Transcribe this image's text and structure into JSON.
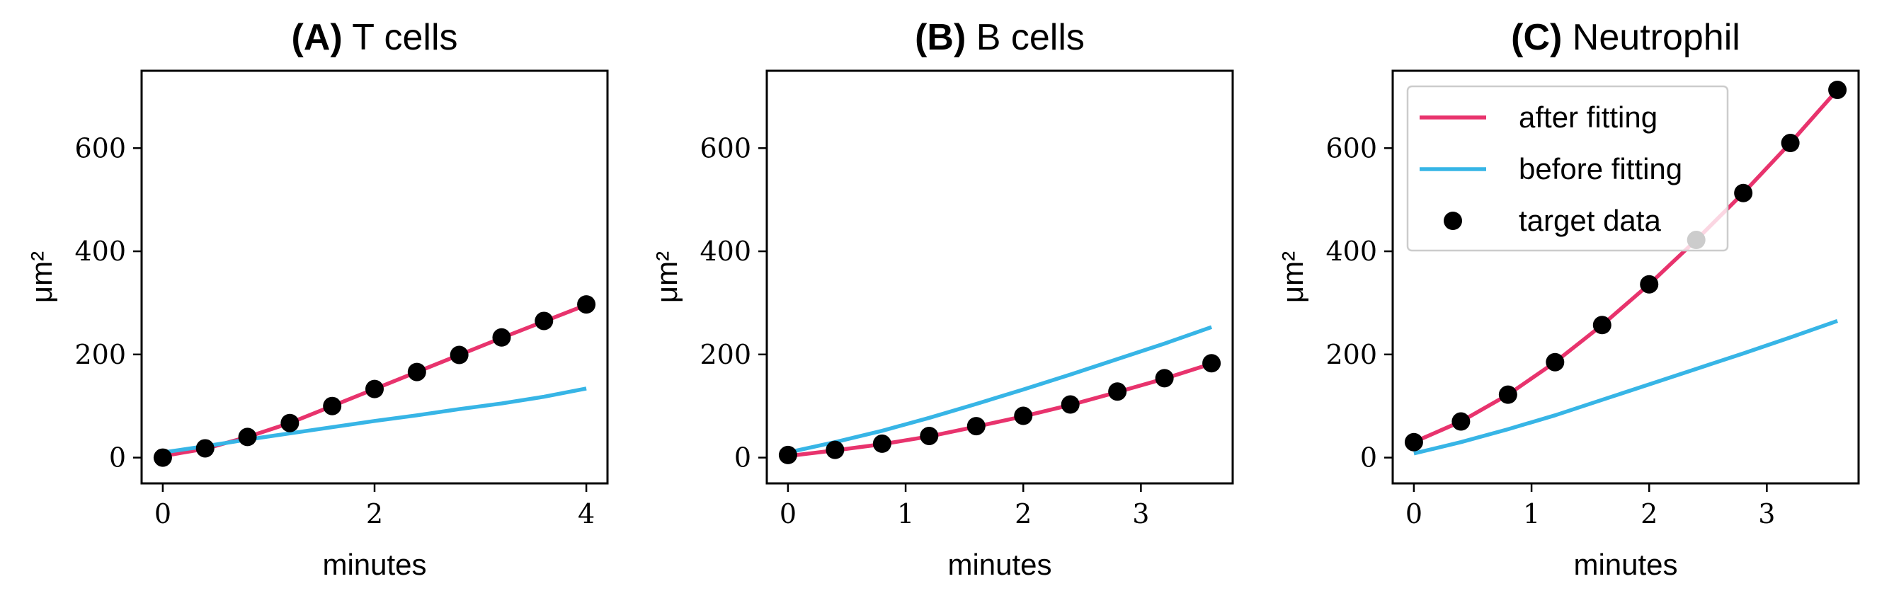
{
  "chart_data": [
    {
      "type": "line",
      "title_prefix": "(A)",
      "title_text": "T cells",
      "xlabel": "minutes",
      "ylabel": "μm²",
      "xlim": [
        -0.2,
        4.2
      ],
      "ylim": [
        -50,
        750
      ],
      "xticks": [
        0,
        2,
        4
      ],
      "xtick_labels": [
        "0",
        "2",
        "4"
      ],
      "yticks": [
        0,
        200,
        400,
        600
      ],
      "ytick_labels": [
        "0",
        "200",
        "400",
        "600"
      ],
      "series": [
        {
          "name": "after fitting",
          "kind": "line",
          "color": "#e8336d",
          "x": [
            0,
            0.4,
            0.8,
            1.2,
            1.6,
            2.0,
            2.4,
            2.8,
            3.2,
            3.6,
            4.0
          ],
          "y": [
            3,
            17,
            40,
            67,
            100,
            133,
            166,
            199,
            232,
            264,
            296
          ]
        },
        {
          "name": "before fitting",
          "kind": "line",
          "color": "#37b5e6",
          "x": [
            0,
            0.4,
            0.8,
            1.2,
            1.6,
            2.0,
            2.4,
            2.8,
            3.2,
            3.6,
            4.0
          ],
          "y": [
            10,
            22,
            35,
            47,
            59,
            71,
            82,
            94,
            105,
            118,
            134
          ]
        },
        {
          "name": "target data",
          "kind": "scatter",
          "color": "#000000",
          "x": [
            0,
            0.4,
            0.8,
            1.2,
            1.6,
            2.0,
            2.4,
            2.8,
            3.2,
            3.6,
            4.0
          ],
          "y": [
            0,
            18,
            40,
            67,
            100,
            133,
            166,
            199,
            233,
            265,
            297
          ]
        }
      ]
    },
    {
      "type": "line",
      "title_prefix": "(B)",
      "title_text": "B cells",
      "xlabel": "minutes",
      "ylabel": "μm²",
      "xlim": [
        -0.18,
        3.78
      ],
      "ylim": [
        -50,
        750
      ],
      "xticks": [
        0,
        1,
        2,
        3
      ],
      "xtick_labels": [
        "0",
        "1",
        "2",
        "3"
      ],
      "yticks": [
        0,
        200,
        400,
        600
      ],
      "ytick_labels": [
        "0",
        "200",
        "400",
        "600"
      ],
      "series": [
        {
          "name": "after fitting",
          "kind": "line",
          "color": "#e8336d",
          "x": [
            0,
            0.4,
            0.8,
            1.2,
            1.6,
            2.0,
            2.4,
            2.8,
            3.2,
            3.6
          ],
          "y": [
            3,
            14,
            26,
            41,
            60,
            80,
            102,
            127,
            153,
            182
          ]
        },
        {
          "name": "before fitting",
          "kind": "line",
          "color": "#37b5e6",
          "x": [
            0,
            0.4,
            0.8,
            1.2,
            1.6,
            2.0,
            2.4,
            2.8,
            3.2,
            3.6
          ],
          "y": [
            10,
            30,
            52,
            77,
            104,
            132,
            161,
            191,
            221,
            253
          ]
        },
        {
          "name": "target data",
          "kind": "scatter",
          "color": "#000000",
          "x": [
            0,
            0.4,
            0.8,
            1.2,
            1.6,
            2.0,
            2.4,
            2.8,
            3.2,
            3.6
          ],
          "y": [
            5,
            15,
            27,
            42,
            61,
            81,
            103,
            128,
            154,
            183
          ]
        }
      ]
    },
    {
      "type": "line",
      "title_prefix": "(C)",
      "title_text": "Neutrophil",
      "xlabel": "minutes",
      "ylabel": "μm²",
      "xlim": [
        -0.18,
        3.78
      ],
      "ylim": [
        -50,
        750
      ],
      "xticks": [
        0,
        1,
        2,
        3
      ],
      "xtick_labels": [
        "0",
        "1",
        "2",
        "3"
      ],
      "yticks": [
        0,
        200,
        400,
        600
      ],
      "ytick_labels": [
        "0",
        "200",
        "400",
        "600"
      ],
      "legend": {
        "location": "upper-left",
        "entries": [
          "after fitting",
          "before fitting",
          "target data"
        ]
      },
      "series": [
        {
          "name": "after fitting",
          "kind": "line",
          "color": "#e8336d",
          "x": [
            0,
            0.4,
            0.8,
            1.2,
            1.6,
            2.0,
            2.4,
            2.8,
            3.2,
            3.6
          ],
          "y": [
            30,
            70,
            122,
            185,
            257,
            336,
            422,
            513,
            610,
            713
          ]
        },
        {
          "name": "before fitting",
          "kind": "line",
          "color": "#37b5e6",
          "x": [
            0,
            0.4,
            0.8,
            1.2,
            1.6,
            2.0,
            2.4,
            2.8,
            3.2,
            3.6
          ],
          "y": [
            8,
            30,
            55,
            82,
            112,
            142,
            172,
            202,
            233,
            265
          ]
        },
        {
          "name": "target data",
          "kind": "scatter",
          "color": "#000000",
          "x": [
            0,
            0.4,
            0.8,
            1.2,
            1.6,
            2.0,
            2.4,
            2.8,
            3.2,
            3.6
          ],
          "y": [
            30,
            70,
            122,
            185,
            257,
            336,
            422,
            513,
            610,
            713
          ]
        }
      ]
    }
  ]
}
